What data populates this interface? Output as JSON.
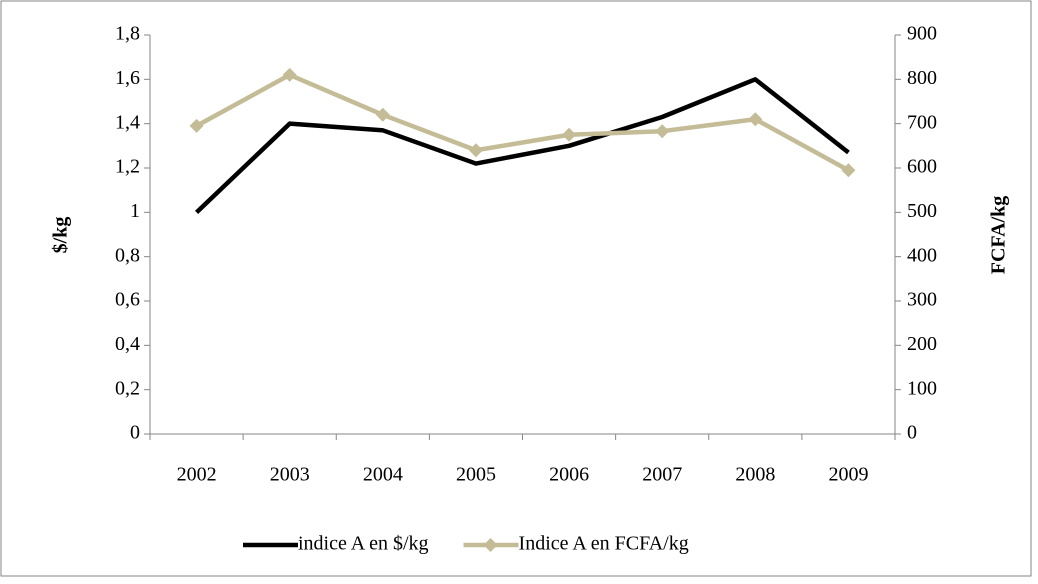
{
  "chart_data": {
    "type": "line",
    "categories": [
      "2002",
      "2003",
      "2004",
      "2005",
      "2006",
      "2007",
      "2008",
      "2009"
    ],
    "series": [
      {
        "name": "indice A en $/kg",
        "color": "#000000",
        "values": [
          1.0,
          1.4,
          1.37,
          1.22,
          1.3,
          1.43,
          1.6,
          1.27
        ]
      },
      {
        "name": "Indice A en FCFA/kg",
        "color": "#c4bc96",
        "axis": "y2",
        "marker": "diamond",
        "values": [
          695,
          810,
          720,
          640,
          675,
          683,
          710,
          595
        ]
      }
    ],
    "ylabel": "$/kg",
    "y2label": "FCFA/kg",
    "ylim": [
      0,
      1.8
    ],
    "yticks": [
      0,
      {
        "value": 0.2,
        "label": "0,2"
      },
      {
        "value": 0.4,
        "label": "0,4"
      },
      {
        "value": 0.6,
        "label": "0,6"
      },
      {
        "value": 0.8,
        "label": "0,8"
      },
      1,
      {
        "value": 1.2,
        "label": "1,2"
      },
      {
        "value": 1.4,
        "label": "1,4"
      },
      {
        "value": 1.6,
        "label": "1,6"
      },
      {
        "value": 1.8,
        "label": "1,8"
      }
    ],
    "y2lim": [
      0,
      900
    ],
    "y2ticks": [
      0,
      100,
      200,
      300,
      400,
      500,
      600,
      700,
      800,
      900
    ],
    "grid": false,
    "legend": "bottom"
  }
}
